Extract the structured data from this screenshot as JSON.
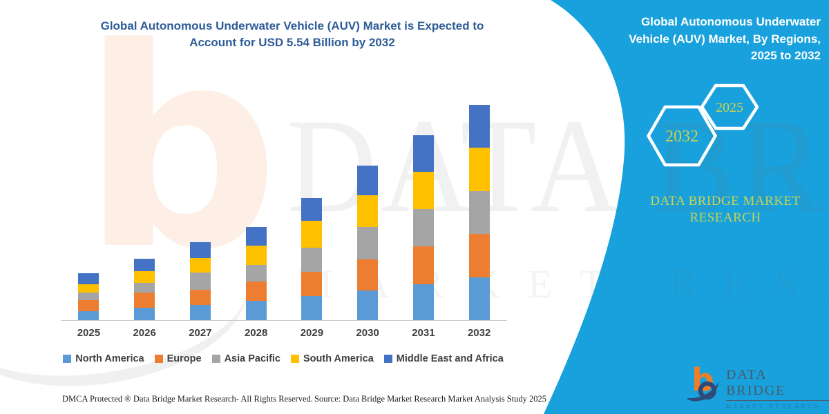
{
  "header": {
    "title_line1": "Global Autonomous Underwater Vehicle (AUV) Market is Expected to",
    "title_line2": "Account for USD 5.54 Billion by 2032"
  },
  "right_panel": {
    "title_line1": "Global Autonomous Underwater",
    "title_line2": "Vehicle (AUV) Market, By Regions,",
    "title_line3": "2025 to 2032",
    "hexagon_back_label": "2032",
    "hexagon_front_label": "2025",
    "brand_line1": "DATA BRIDGE MARKET",
    "brand_line2": "RESEARCH",
    "panel_color": "#18A1DC",
    "hex_text_color": "#C9D34F"
  },
  "chart_data": {
    "type": "bar",
    "stacked": true,
    "title": "Global Autonomous Underwater Vehicle (AUV) Market is Expected to Account for USD 5.54 Billion by 2032",
    "unit": "USD Billion",
    "categories": [
      "2025",
      "2026",
      "2027",
      "2028",
      "2029",
      "2030",
      "2031",
      "2032"
    ],
    "series": [
      {
        "name": "North America",
        "color": "#5B9BD5",
        "values": [
          0.23,
          0.32,
          0.39,
          0.5,
          0.63,
          0.77,
          0.93,
          1.1
        ]
      },
      {
        "name": "Europe",
        "color": "#ED7D31",
        "values": [
          0.28,
          0.39,
          0.39,
          0.5,
          0.61,
          0.8,
          0.97,
          1.12
        ]
      },
      {
        "name": "Asia Pacific",
        "color": "#A5A5A5",
        "values": [
          0.2,
          0.25,
          0.44,
          0.42,
          0.63,
          0.83,
          0.96,
          1.1
        ]
      },
      {
        "name": "South America",
        "color": "#FFC000",
        "values": [
          0.22,
          0.3,
          0.38,
          0.5,
          0.69,
          0.82,
          0.95,
          1.12
        ]
      },
      {
        "name": "Middle East and Africa",
        "color": "#4472C4",
        "values": [
          0.27,
          0.32,
          0.4,
          0.48,
          0.59,
          0.75,
          0.95,
          1.1
        ]
      }
    ],
    "totals_usd_billion": [
      1.2,
      1.58,
      2.0,
      2.4,
      3.15,
      3.97,
      4.76,
      5.54
    ],
    "ylim": [
      0,
      5.54
    ],
    "grid": false,
    "legend_position": "bottom"
  },
  "watermarks": {
    "big_text": "DATA BRIDGE",
    "sub_text": "MARKET RESEARCH",
    "logo_letter": "b"
  },
  "footer": {
    "dmca": "DMCA Protected ® Data Bridge Market Research-  All Rights Reserved.",
    "source": "Source: Data Bridge Market Research  Market Analysis Study 2025",
    "logo_brand": "DATA BRIDGE",
    "logo_sub": "MARKET RESEARCH"
  }
}
